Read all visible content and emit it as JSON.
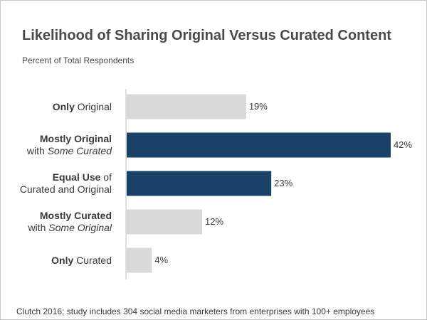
{
  "chart_data": {
    "type": "bar",
    "orientation": "horizontal",
    "title": "Likelihood of Sharing Original Versus Curated Content",
    "subtitle": "Percent of Total Respondents",
    "xlabel": "",
    "ylabel": "",
    "xlim": [
      0,
      45
    ],
    "grid": false,
    "categories": [
      "Only Original",
      "Mostly Original with Some Curated",
      "Equal Use of Curated and Original",
      "Mostly Curated with Some Original",
      "Only Curated"
    ],
    "category_label_parts": [
      {
        "line1": [
          {
            "t": "Only",
            "s": "bold"
          },
          {
            "t": " Original",
            "s": "normal"
          }
        ],
        "line2": []
      },
      {
        "line1": [
          {
            "t": "Mostly Original",
            "s": "bold"
          }
        ],
        "line2": [
          {
            "t": "with ",
            "s": "normal"
          },
          {
            "t": "Some Curated",
            "s": "italic"
          }
        ]
      },
      {
        "line1": [
          {
            "t": "Equal Use",
            "s": "bold"
          },
          {
            "t": " of",
            "s": "normal"
          }
        ],
        "line2": [
          {
            "t": "Curated and Original",
            "s": "normal"
          }
        ]
      },
      {
        "line1": [
          {
            "t": "Mostly Curated",
            "s": "bold"
          }
        ],
        "line2": [
          {
            "t": "with ",
            "s": "normal"
          },
          {
            "t": "Some Original",
            "s": "italic"
          }
        ]
      },
      {
        "line1": [
          {
            "t": "Only",
            "s": "bold"
          },
          {
            "t": " Curated",
            "s": "normal"
          }
        ],
        "line2": []
      }
    ],
    "values": [
      19,
      42,
      23,
      12,
      4
    ],
    "value_labels": [
      "19%",
      "42%",
      "23%",
      "12%",
      "4%"
    ],
    "highlighted": [
      false,
      true,
      true,
      false,
      false
    ],
    "colors": {
      "normal": "#d9d9d9",
      "highlight": "#1a4168",
      "axis": "#bfbfbf",
      "text": "#3a3a3a"
    }
  },
  "footnote": "Clutch 2016; study includes 304 social media marketers from enterprises with 100+ employees"
}
